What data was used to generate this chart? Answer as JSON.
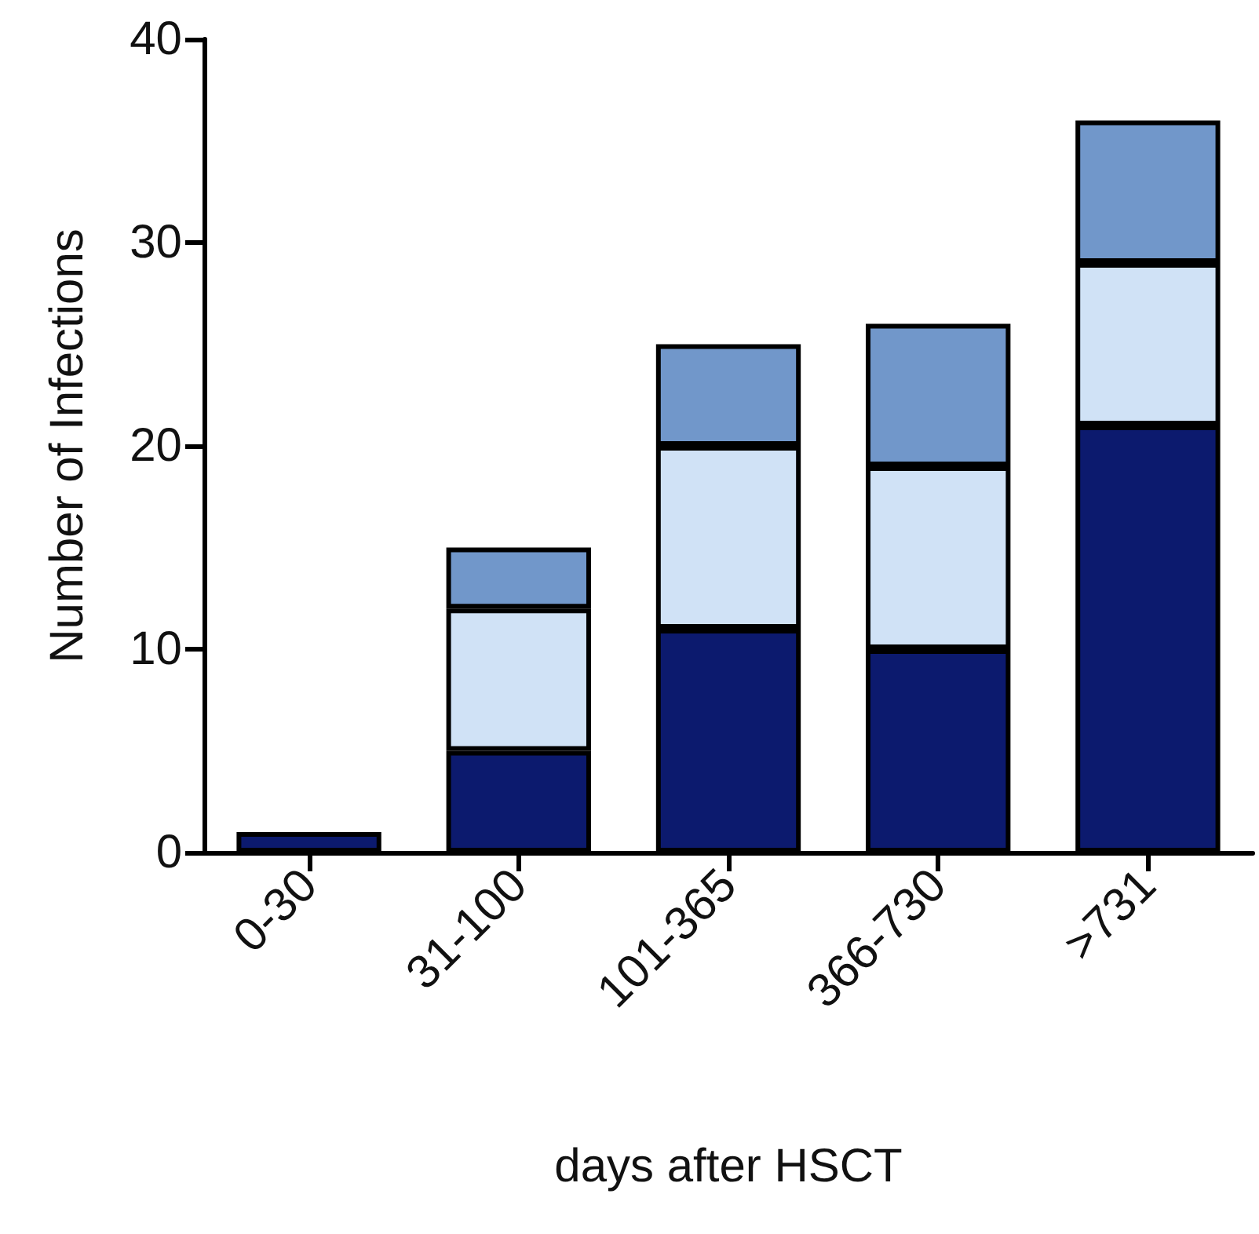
{
  "chart_data": {
    "type": "bar",
    "stacked": true,
    "xlabel": "days after HSCT",
    "ylabel": "Number of Infections",
    "categories": [
      "0-30",
      "31-100",
      "101-365",
      "366-730",
      ">731"
    ],
    "series": [
      {
        "color": "#0c1a6e",
        "values": [
          1,
          5,
          11,
          10,
          21
        ]
      },
      {
        "color": "#d0e2f6",
        "values": [
          0,
          7,
          9,
          9,
          8
        ]
      },
      {
        "color": "#7197ca",
        "values": [
          0,
          3,
          5,
          7,
          7
        ]
      }
    ],
    "ylim": [
      0,
      40
    ],
    "yticks": [
      0,
      10,
      20,
      30,
      40
    ],
    "grid": false
  }
}
